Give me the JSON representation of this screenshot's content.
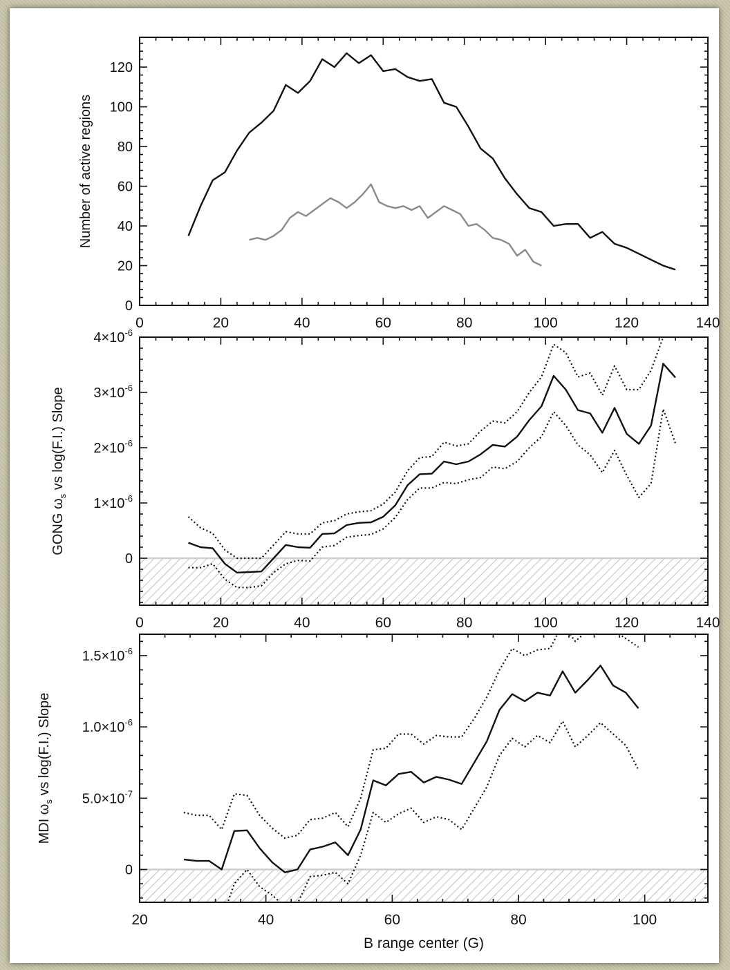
{
  "chart_data": [
    {
      "type": "line",
      "ylabel": "Number of active regions",
      "xlim": [
        0,
        140
      ],
      "ylim": [
        0,
        135
      ],
      "xticks": [
        0,
        20,
        40,
        60,
        80,
        100,
        120,
        140
      ],
      "yticks": [
        0,
        20,
        40,
        60,
        80,
        100,
        120
      ],
      "xtick_labels": [
        "0",
        "20",
        "40",
        "60",
        "80",
        "100",
        "120",
        "140"
      ],
      "ytick_labels": [
        "0",
        "20",
        "40",
        "60",
        "80",
        "100",
        "120"
      ],
      "series": [
        {
          "color": "#111111",
          "style": "solid",
          "x": [
            12,
            15,
            18,
            21,
            24,
            27,
            30,
            33,
            36,
            39,
            42,
            45,
            48,
            51,
            54,
            57,
            60,
            63,
            66,
            69,
            72,
            75,
            78,
            81,
            84,
            87,
            90,
            93,
            96,
            99,
            102,
            105,
            108,
            111,
            114,
            117,
            120,
            123,
            126,
            129,
            132
          ],
          "y": [
            35,
            50,
            63,
            67,
            78,
            87,
            92,
            98,
            111,
            107,
            113,
            124,
            120,
            127,
            122,
            126,
            118,
            119,
            115,
            113,
            114,
            102,
            100,
            90,
            79,
            74,
            64,
            56,
            49,
            47,
            40,
            41,
            41,
            34,
            37,
            31,
            29,
            26,
            23,
            20,
            18
          ]
        },
        {
          "color": "#8a8a8a",
          "style": "solid",
          "x": [
            27,
            29,
            31,
            33,
            35,
            37,
            39,
            41,
            43,
            45,
            47,
            49,
            51,
            53,
            55,
            57,
            59,
            61,
            63,
            65,
            67,
            69,
            71,
            73,
            75,
            77,
            79,
            81,
            83,
            85,
            87,
            89,
            91,
            93,
            95,
            97,
            99
          ],
          "y": [
            33,
            34,
            33,
            35,
            38,
            44,
            47,
            45,
            48,
            51,
            54,
            52,
            49,
            52,
            56,
            61,
            52,
            50,
            49,
            50,
            48,
            50,
            44,
            47,
            50,
            48,
            46,
            40,
            41,
            38,
            34,
            33,
            31,
            25,
            28,
            22,
            20
          ]
        }
      ]
    },
    {
      "type": "line",
      "ylabel": "GONG ω_s vs log(F.I.) Slope",
      "ylabel_parts": [
        "GONG ",
        "ω",
        "s",
        " vs log(F.I.) Slope"
      ],
      "xlim": [
        0,
        140
      ],
      "ylim": [
        -8.5e-07,
        4e-06
      ],
      "xticks": [
        0,
        20,
        40,
        60,
        80,
        100,
        120,
        140
      ],
      "xtick_labels": [
        "0",
        "20",
        "40",
        "60",
        "80",
        "100",
        "120",
        "140"
      ],
      "yticks": [
        0,
        1e-06,
        2e-06,
        3e-06,
        4e-06
      ],
      "ytick_labels": [
        {
          "m": "0",
          "e": ""
        },
        {
          "m": "1×10",
          "e": "-6"
        },
        {
          "m": "2×10",
          "e": "-6"
        },
        {
          "m": "3×10",
          "e": "-6"
        },
        {
          "m": "4×10",
          "e": "-6"
        }
      ],
      "shaded_below": 0,
      "series": [
        {
          "color": "#111111",
          "style": "solid",
          "x": [
            12,
            15,
            18,
            21,
            24,
            27,
            30,
            33,
            36,
            39,
            42,
            45,
            48,
            51,
            54,
            57,
            60,
            63,
            66,
            69,
            72,
            75,
            78,
            81,
            84,
            87,
            90,
            93,
            96,
            99,
            102,
            105,
            108,
            111,
            114,
            117,
            120,
            123,
            126,
            129,
            132
          ],
          "y": [
            2.8e-07,
            2e-07,
            1.8e-07,
            -1e-07,
            -2.6e-07,
            -2.5e-07,
            -2.4e-07,
            0.0,
            2.4e-07,
            2e-07,
            1.9e-07,
            4.4e-07,
            4.5e-07,
            6e-07,
            6.4e-07,
            6.5e-07,
            7.5e-07,
            9.6e-07,
            1.32e-06,
            1.52e-06,
            1.53e-06,
            1.75e-06,
            1.7e-06,
            1.75e-06,
            1.88e-06,
            2.05e-06,
            2.02e-06,
            2.2e-06,
            2.5e-06,
            2.75e-06,
            3.3e-06,
            3.05e-06,
            2.68e-06,
            2.62e-06,
            2.27e-06,
            2.72e-06,
            2.25e-06,
            2.07e-06,
            2.4e-06,
            3.52e-06,
            3.27e-06
          ]
        },
        {
          "color": "#111111",
          "style": "dotted",
          "x": [
            12,
            15,
            18,
            21,
            24,
            27,
            30,
            33,
            36,
            39,
            42,
            45,
            48,
            51,
            54,
            57,
            60,
            63,
            66,
            69,
            72,
            75,
            78,
            81,
            84,
            87,
            90,
            93,
            96,
            99,
            102,
            105,
            108,
            111,
            114,
            117,
            120,
            123,
            126,
            129
          ],
          "y": [
            7.5e-07,
            5.5e-07,
            4.5e-07,
            1.5e-07,
            0.0,
            0.0,
            0.0,
            2.4e-07,
            4.8e-07,
            4.4e-07,
            4.4e-07,
            6.4e-07,
            6.8e-07,
            8e-07,
            8.4e-07,
            8.6e-07,
            9.8e-07,
            1.2e-06,
            1.58e-06,
            1.82e-06,
            1.84e-06,
            2.1e-06,
            2.03e-06,
            2.07e-06,
            2.3e-06,
            2.48e-06,
            2.45e-06,
            2.65e-06,
            3e-06,
            3.28e-06,
            3.87e-06,
            3.72e-06,
            3.28e-06,
            3.35e-06,
            2.95e-06,
            3.48e-06,
            3.05e-06,
            3.05e-06,
            3.4e-06,
            4e-06
          ]
        },
        {
          "color": "#111111",
          "style": "dotted",
          "x": [
            12,
            15,
            18,
            21,
            24,
            27,
            30,
            33,
            36,
            39,
            42,
            45,
            48,
            51,
            54,
            57,
            60,
            63,
            66,
            69,
            72,
            75,
            78,
            81,
            84,
            87,
            90,
            93,
            96,
            99,
            102,
            105,
            108,
            111,
            114,
            117,
            120,
            123,
            126,
            129,
            132
          ],
          "y": [
            -1.7e-07,
            -1.7e-07,
            -1e-07,
            -3.8e-07,
            -5.3e-07,
            -5.3e-07,
            -5e-07,
            -2.6e-07,
            -1e-07,
            -4e-08,
            -5e-08,
            2e-07,
            2.3e-07,
            3.8e-07,
            4.1e-07,
            4.3e-07,
            5.3e-07,
            7.4e-07,
            1.06e-06,
            1.27e-06,
            1.27e-06,
            1.37e-06,
            1.35e-06,
            1.42e-06,
            1.46e-06,
            1.65e-06,
            1.62e-06,
            1.75e-06,
            2e-06,
            2.2e-06,
            2.65e-06,
            2.4e-06,
            2.05e-06,
            1.87e-06,
            1.55e-06,
            1.95e-06,
            1.5e-06,
            1.1e-06,
            1.35e-06,
            2.7e-06,
            2.08e-06
          ]
        }
      ]
    },
    {
      "type": "line",
      "xlabel": "B range center (G)",
      "ylabel": "MDI ω_s vs log(F.I.) Slope",
      "ylabel_parts": [
        "MDI ",
        "ω",
        "s",
        " vs log(F.I.) Slope"
      ],
      "xlim": [
        20,
        110
      ],
      "ylim": [
        -2.3e-07,
        1.65e-06
      ],
      "xticks": [
        20,
        40,
        60,
        80,
        100
      ],
      "xtick_labels": [
        "20",
        "40",
        "60",
        "80",
        "100"
      ],
      "yticks": [
        0,
        5e-07,
        1e-06,
        1.5e-06
      ],
      "ytick_labels": [
        {
          "m": "0",
          "e": ""
        },
        {
          "m": "5.0×10",
          "e": "-7"
        },
        {
          "m": "1.0×10",
          "e": "-6"
        },
        {
          "m": "1.5×10",
          "e": "-6"
        }
      ],
      "shaded_below": 0,
      "series": [
        {
          "color": "#111111",
          "style": "solid",
          "x": [
            27,
            29,
            31,
            33,
            35,
            37,
            39,
            41,
            43,
            45,
            47,
            49,
            51,
            53,
            55,
            57,
            59,
            61,
            63,
            65,
            67,
            69,
            71,
            73,
            75,
            77,
            79,
            81,
            83,
            85,
            87,
            89,
            91,
            93,
            95,
            97,
            99
          ],
          "y": [
            7e-08,
            6e-08,
            6e-08,
            0.0,
            2.7e-07,
            2.75e-07,
            1.5e-07,
            5e-08,
            -2e-08,
            0.0,
            1.4e-07,
            1.6e-07,
            1.9e-07,
            1e-07,
            2.8e-07,
            6.25e-07,
            5.9e-07,
            6.7e-07,
            6.85e-07,
            6.1e-07,
            6.5e-07,
            6.3e-07,
            6e-07,
            7.5e-07,
            9e-07,
            1.12e-06,
            1.23e-06,
            1.18e-06,
            1.24e-06,
            1.22e-06,
            1.39e-06,
            1.24e-06,
            1.33e-06,
            1.43e-06,
            1.29e-06,
            1.24e-06,
            1.13e-06
          ]
        },
        {
          "color": "#111111",
          "style": "dotted",
          "x": [
            27,
            29,
            31,
            33,
            35,
            37,
            39,
            41,
            43,
            45,
            47,
            49,
            51,
            53,
            55,
            57,
            59,
            61,
            63,
            65,
            67,
            69,
            71,
            73,
            75,
            77,
            79,
            81,
            83,
            85,
            87,
            89,
            91,
            93,
            95,
            97,
            99
          ],
          "y": [
            4e-07,
            3.8e-07,
            3.8e-07,
            2.8e-07,
            5.3e-07,
            5.2e-07,
            3.8e-07,
            2.9e-07,
            2.2e-07,
            2.4e-07,
            3.5e-07,
            3.6e-07,
            4e-07,
            3e-07,
            5e-07,
            8.4e-07,
            8.5e-07,
            9.5e-07,
            9.5e-07,
            8.8e-07,
            9.4e-07,
            9.3e-07,
            9.3e-07,
            1.06e-06,
            1.21e-06,
            1.4e-06,
            1.55e-06,
            1.5e-06,
            1.54e-06,
            1.55e-06,
            1.72e-06,
            1.6e-06,
            1.68e-06,
            1.75e-06,
            1.68e-06,
            1.62e-06,
            1.56e-06
          ]
        },
        {
          "color": "#111111",
          "style": "dotted",
          "x": [
            31,
            33,
            35,
            37,
            39,
            41,
            43,
            45,
            47,
            49,
            51,
            53,
            55,
            57,
            59,
            61,
            63,
            65,
            67,
            69,
            71,
            73,
            75,
            77,
            79,
            81,
            83,
            85,
            87,
            89,
            91,
            93,
            95,
            97,
            99
          ],
          "y": [
            -4e-07,
            -3.5e-07,
            -1e-07,
            0.0,
            -1.2e-07,
            -1.8e-07,
            -2.6e-07,
            -2.4e-07,
            -5e-08,
            -4e-08,
            -2e-08,
            -1e-07,
            1e-07,
            4e-07,
            3.3e-07,
            3.9e-07,
            4.3e-07,
            3.3e-07,
            3.7e-07,
            3.5e-07,
            2.8e-07,
            4.3e-07,
            5.8e-07,
            8e-07,
            9.2e-07,
            8.6e-07,
            9.4e-07,
            8.9e-07,
            1.04e-06,
            8.6e-07,
            9.4e-07,
            1.03e-06,
            9.5e-07,
            8.7e-07,
            7e-07
          ]
        }
      ]
    }
  ]
}
